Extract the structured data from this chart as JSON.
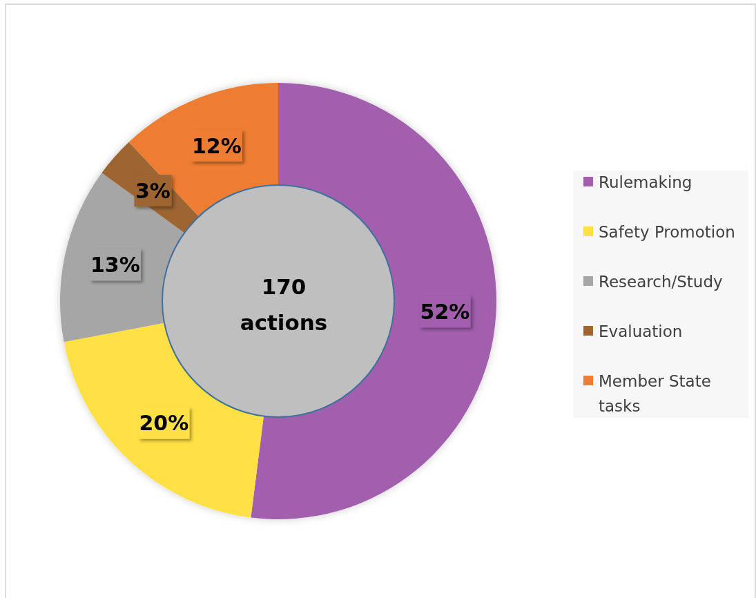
{
  "chart_data": {
    "type": "donut",
    "categories": [
      "Rulemaking",
      "Safety Promotion",
      "Research/Study",
      "Evaluation",
      "Member State tasks"
    ],
    "values": [
      52,
      20,
      13,
      3,
      12
    ],
    "colors": [
      "#a15fad",
      "#ffe045",
      "#a6a6a6",
      "#9c6531",
      "#ed7d31"
    ],
    "value_labels": [
      "52%",
      "20%",
      "13%",
      "3%",
      "12%"
    ],
    "legend": "right",
    "annotations": [
      "170 actions"
    ]
  }
}
